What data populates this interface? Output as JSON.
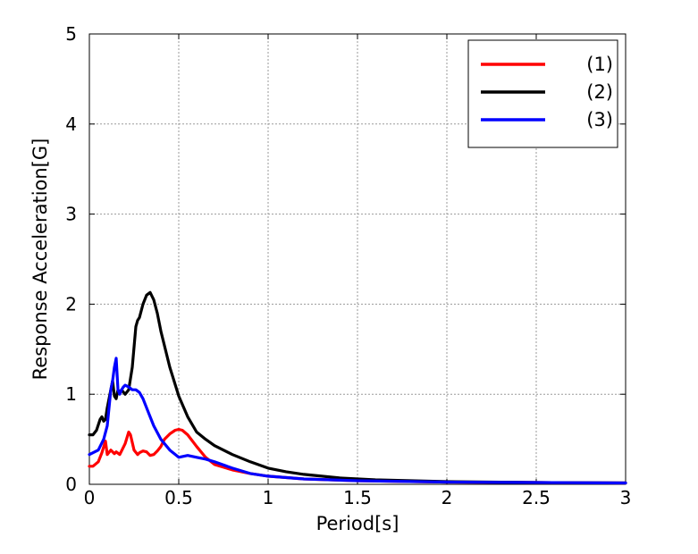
{
  "chart_data": {
    "type": "line",
    "title": "",
    "xlabel": "Period[s]",
    "ylabel": "Response Acceleration[G]",
    "xlim": [
      0,
      3
    ],
    "ylim": [
      0,
      5
    ],
    "xticks": [
      0,
      0.5,
      1,
      1.5,
      2,
      2.5,
      3
    ],
    "yticks": [
      0,
      1,
      2,
      3,
      4,
      5
    ],
    "xtick_labels": [
      "0",
      "0.5",
      "1",
      "1.5",
      "2",
      "2.5",
      "3"
    ],
    "ytick_labels": [
      "0",
      "1",
      "2",
      "3",
      "4",
      "5"
    ],
    "grid": true,
    "legend_position": "top-right",
    "series": [
      {
        "name": "(1)",
        "color": "#ff0000",
        "x": [
          0,
          0.02,
          0.05,
          0.07,
          0.09,
          0.1,
          0.12,
          0.14,
          0.15,
          0.17,
          0.18,
          0.2,
          0.22,
          0.23,
          0.25,
          0.27,
          0.28,
          0.3,
          0.32,
          0.34,
          0.36,
          0.38,
          0.4,
          0.42,
          0.45,
          0.48,
          0.5,
          0.52,
          0.55,
          0.6,
          0.65,
          0.7,
          0.8,
          0.9,
          1.0,
          1.2,
          1.5,
          2.0,
          2.5,
          3.0
        ],
        "y": [
          0.2,
          0.2,
          0.25,
          0.35,
          0.48,
          0.33,
          0.38,
          0.34,
          0.36,
          0.33,
          0.37,
          0.45,
          0.58,
          0.55,
          0.38,
          0.33,
          0.35,
          0.37,
          0.36,
          0.32,
          0.33,
          0.37,
          0.42,
          0.5,
          0.56,
          0.6,
          0.61,
          0.6,
          0.55,
          0.42,
          0.3,
          0.22,
          0.16,
          0.12,
          0.09,
          0.06,
          0.04,
          0.025,
          0.02,
          0.015
        ]
      },
      {
        "name": "(2)",
        "color": "#000000",
        "x": [
          0,
          0.02,
          0.04,
          0.06,
          0.07,
          0.08,
          0.09,
          0.1,
          0.12,
          0.13,
          0.14,
          0.15,
          0.16,
          0.17,
          0.18,
          0.2,
          0.22,
          0.24,
          0.26,
          0.27,
          0.28,
          0.3,
          0.32,
          0.34,
          0.36,
          0.38,
          0.4,
          0.45,
          0.5,
          0.55,
          0.6,
          0.65,
          0.7,
          0.8,
          0.9,
          1.0,
          1.1,
          1.2,
          1.4,
          1.6,
          1.8,
          2.0,
          2.5,
          3.0
        ],
        "y": [
          0.55,
          0.55,
          0.6,
          0.72,
          0.75,
          0.7,
          0.72,
          0.85,
          1.05,
          1.15,
          0.98,
          0.95,
          1.05,
          1.02,
          1.05,
          1.0,
          1.05,
          1.3,
          1.75,
          1.82,
          1.85,
          2.0,
          2.1,
          2.13,
          2.05,
          1.9,
          1.7,
          1.3,
          0.98,
          0.75,
          0.58,
          0.5,
          0.43,
          0.33,
          0.25,
          0.18,
          0.14,
          0.11,
          0.07,
          0.05,
          0.04,
          0.03,
          0.02,
          0.015
        ]
      },
      {
        "name": "(3)",
        "color": "#0000ff",
        "x": [
          0,
          0.02,
          0.05,
          0.08,
          0.1,
          0.12,
          0.13,
          0.14,
          0.15,
          0.16,
          0.17,
          0.18,
          0.19,
          0.2,
          0.22,
          0.24,
          0.26,
          0.28,
          0.3,
          0.33,
          0.36,
          0.4,
          0.45,
          0.5,
          0.55,
          0.6,
          0.65,
          0.7,
          0.8,
          0.9,
          1.0,
          1.2,
          1.5,
          2.0,
          2.5,
          3.0
        ],
        "y": [
          0.33,
          0.35,
          0.38,
          0.5,
          0.65,
          1.05,
          1.15,
          1.3,
          1.4,
          1.05,
          1.0,
          1.05,
          1.08,
          1.1,
          1.08,
          1.05,
          1.05,
          1.02,
          0.95,
          0.8,
          0.65,
          0.5,
          0.38,
          0.3,
          0.32,
          0.3,
          0.28,
          0.25,
          0.18,
          0.12,
          0.09,
          0.06,
          0.04,
          0.025,
          0.02,
          0.015
        ]
      }
    ]
  }
}
